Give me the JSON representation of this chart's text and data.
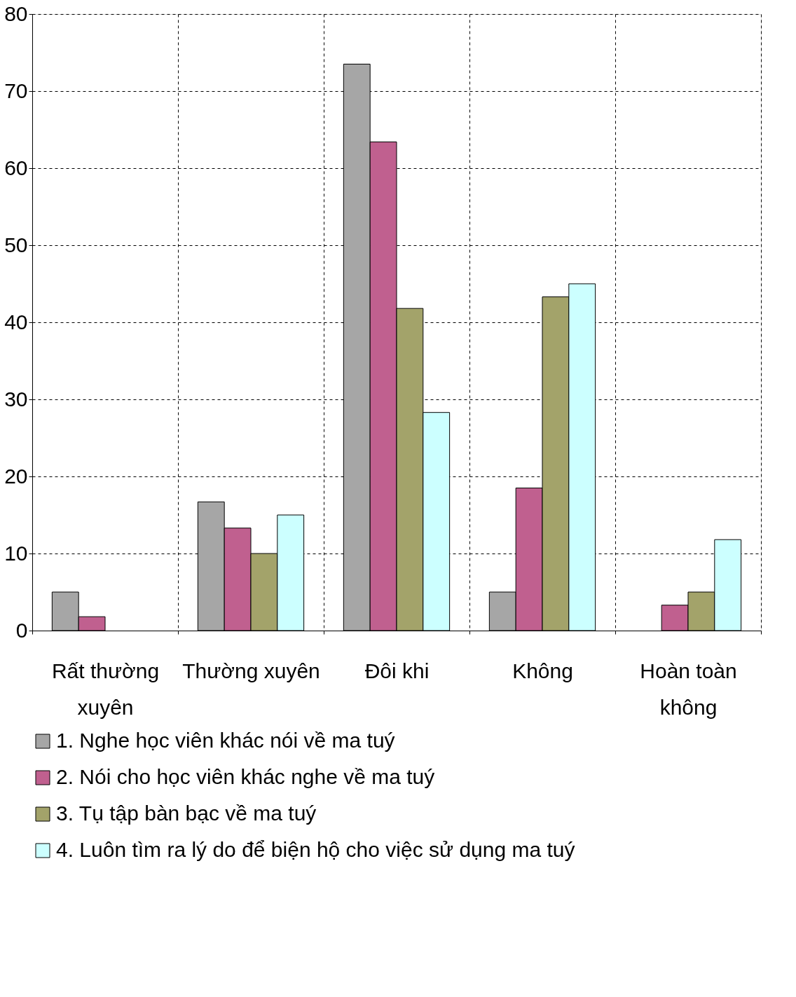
{
  "chart_data": {
    "type": "bar",
    "categories": [
      "Rất thường xuyên",
      "Thường xuyên",
      "Đôi khi",
      "Không",
      "Hoàn toàn không"
    ],
    "series": [
      {
        "name": "1. Nghe học viên khác nói về ma tuý",
        "color": "#a6a6a6",
        "values": [
          5,
          16.7,
          73.5,
          5,
          null
        ]
      },
      {
        "name": "2. Nói cho học viên khác nghe về ma tuý",
        "color": "#c0608f",
        "values": [
          1.8,
          13.3,
          63.4,
          18.5,
          3.3
        ]
      },
      {
        "name": "3. Tụ tập bàn bạc về ma tuý",
        "color": "#a3a36a",
        "values": [
          null,
          10,
          41.8,
          43.3,
          5
        ]
      },
      {
        "name": "4. Luôn tìm ra lý do để biện hộ cho việc sử dụng ma tuý",
        "color": "#ccffff",
        "values": [
          null,
          15,
          28.3,
          45,
          11.8
        ]
      }
    ],
    "ylim": [
      0,
      80
    ],
    "yticks": [
      0,
      10,
      20,
      30,
      40,
      50,
      60,
      70,
      80
    ],
    "grid": true,
    "legend": "bottom"
  }
}
